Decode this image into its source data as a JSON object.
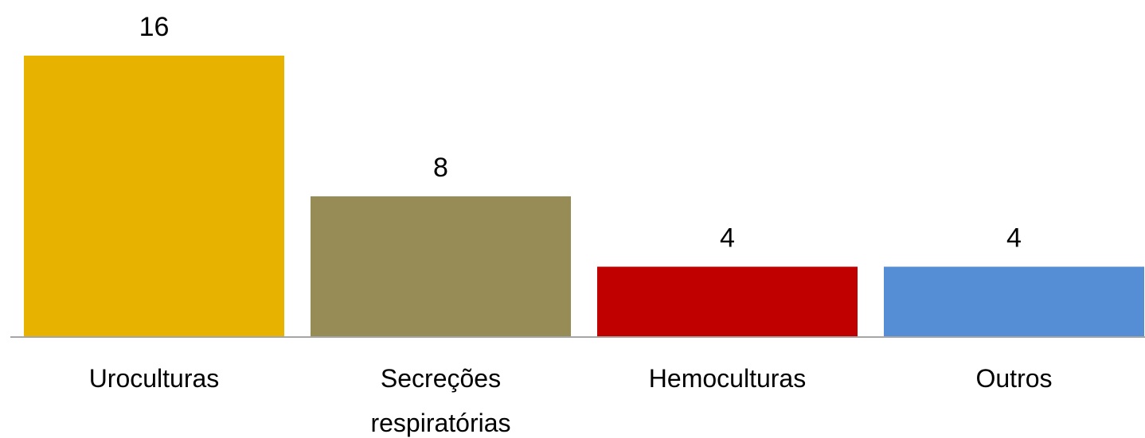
{
  "chart_data": {
    "type": "bar",
    "categories": [
      "Uroculturas",
      "Secreções respiratórias",
      "Hemoculturas",
      "Outros"
    ],
    "values": [
      16,
      8,
      4,
      4
    ],
    "colors": [
      "#e8b200",
      "#978c55",
      "#c00000",
      "#558ed5"
    ]
  }
}
